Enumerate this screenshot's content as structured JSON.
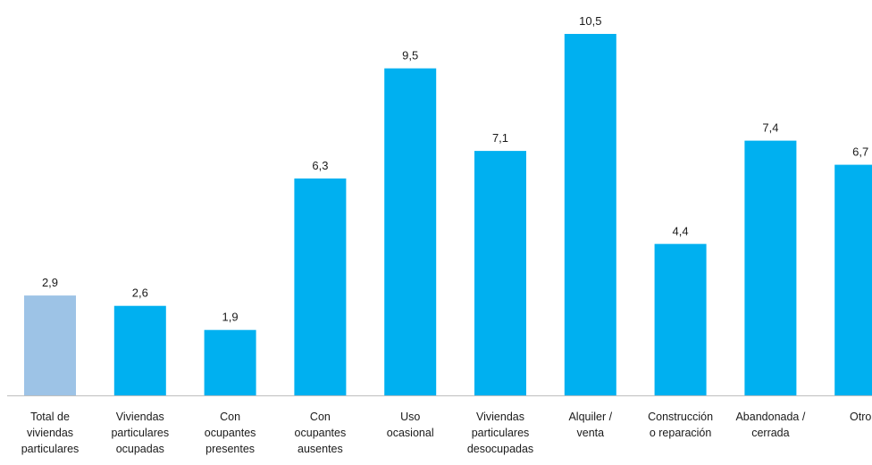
{
  "chart_data": {
    "type": "bar",
    "categories": [
      [
        "Total de",
        "viviendas",
        "particulares"
      ],
      [
        "Viviendas",
        "particulares",
        "ocupadas"
      ],
      [
        "Con",
        "ocupantes",
        "presentes"
      ],
      [
        "Con",
        "ocupantes",
        "ausentes"
      ],
      [
        "Uso",
        "ocasional"
      ],
      [
        "Viviendas",
        "particulares",
        "desocupadas"
      ],
      [
        "Alquiler /",
        "venta"
      ],
      [
        "Construcción",
        "o reparación"
      ],
      [
        "Abandonada /",
        "cerrada"
      ],
      [
        "Otro"
      ]
    ],
    "values": [
      2.9,
      2.6,
      1.9,
      6.3,
      9.5,
      7.1,
      10.5,
      4.4,
      7.4,
      6.7
    ],
    "value_labels": [
      "2,9",
      "2,6",
      "1,9",
      "6,3",
      "9,5",
      "7,1",
      "10,5",
      "4,4",
      "7,4",
      "6,7"
    ],
    "bar_colors": [
      "#9dc3e6",
      "#00b0f0",
      "#00b0f0",
      "#00b0f0",
      "#00b0f0",
      "#00b0f0",
      "#00b0f0",
      "#00b0f0",
      "#00b0f0",
      "#00b0f0"
    ],
    "axis_color": "#bfbfbf",
    "ylim": [
      0,
      10.5
    ],
    "title": "",
    "xlabel": "",
    "ylabel": "",
    "grid": false,
    "legend": "none"
  }
}
